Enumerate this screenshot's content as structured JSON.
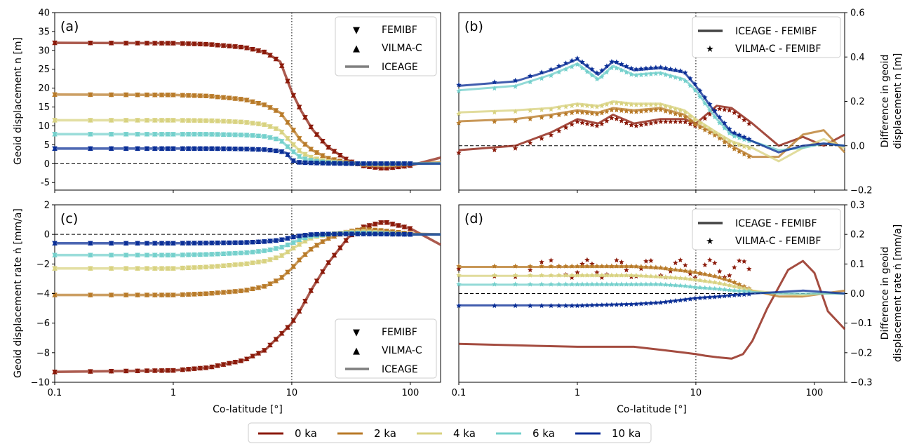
{
  "figure": {
    "xlabel": "Co-latitude [°]",
    "x_ticks": [
      "0.1",
      "1",
      "10",
      "100"
    ],
    "series_labels": [
      "0 ka",
      "2 ka",
      "4 ka",
      "6 ka",
      "10 ka"
    ],
    "series_colors": [
      "#8b1a0a",
      "#b87a28",
      "#d8d280",
      "#74d0cc",
      "#0a2e96"
    ],
    "vertical_marker_x": 10
  },
  "panels": {
    "a": {
      "label": "(a)",
      "ylabel_lines": [
        "Geoid displacement n [m]"
      ],
      "y_ticks": [
        "40",
        "35",
        "30",
        "25",
        "20",
        "15",
        "10",
        "5",
        "0",
        "-5"
      ],
      "legend": [
        "FEMIBF",
        "VILMA-C",
        "ICEAGE"
      ]
    },
    "b": {
      "label": "(b)",
      "ylabel_lines": [
        "Difference in geoid",
        "displacement n [m]"
      ],
      "y_ticks": [
        "0.6",
        "0.4",
        "0.2",
        "0.0",
        "−0.2"
      ],
      "legend": [
        "ICEAGE - FEMIBF",
        "VILMA-C - FEMIBF"
      ]
    },
    "c": {
      "label": "(c)",
      "ylabel_lines": [
        "Geoid displacement rate ṅ [mm/a]"
      ],
      "y_ticks": [
        "2",
        "0",
        "−2",
        "−4",
        "−6",
        "−8",
        "−10"
      ],
      "legend": [
        "FEMIBF",
        "VILMA-C",
        "ICEAGE"
      ]
    },
    "d": {
      "label": "(d)",
      "ylabel_lines": [
        "Difference in geoid",
        "displacement rate ṅ [mm/a]"
      ],
      "y_ticks": [
        "0.3",
        "0.2",
        "0.1",
        "0.0",
        "−0.1",
        "−0.2",
        "−0.3"
      ],
      "legend": [
        "ICEAGE - FEMIBF",
        "VILMA-C - FEMIBF"
      ]
    }
  },
  "chart_data": [
    {
      "panel": "a",
      "type": "line",
      "xscale": "log",
      "xlim": [
        0.1,
        180
      ],
      "ylim": [
        -7,
        40
      ],
      "ylabel": "Geoid displacement n [m]",
      "series": [
        {
          "name": "0 ka",
          "x": [
            0.1,
            1,
            2,
            4,
            6,
            8,
            10,
            12,
            15,
            20,
            30,
            40,
            60,
            100,
            180
          ],
          "values": [
            32.0,
            31.9,
            31.6,
            30.8,
            29.5,
            27.0,
            19.0,
            14.0,
            9.0,
            4.5,
            0.8,
            -0.6,
            -1.3,
            -0.5,
            1.6
          ]
        },
        {
          "name": "2 ka",
          "x": [
            0.1,
            1,
            2,
            4,
            6,
            8,
            10,
            12,
            15,
            20,
            30,
            40,
            60,
            100,
            180
          ],
          "values": [
            18.3,
            18.2,
            17.9,
            17.0,
            15.5,
            13.5,
            9.5,
            6.0,
            3.5,
            1.5,
            0.2,
            -0.2,
            -0.4,
            -0.1,
            0.4
          ]
        },
        {
          "name": "4 ka",
          "x": [
            0.1,
            1,
            2,
            4,
            6,
            8,
            10,
            12,
            15,
            20,
            30,
            40,
            60,
            100,
            180
          ],
          "values": [
            11.5,
            11.5,
            11.4,
            11.0,
            10.3,
            8.8,
            5.5,
            3.0,
            1.5,
            0.6,
            0.1,
            -0.1,
            -0.2,
            0.0,
            0.2
          ]
        },
        {
          "name": "6 ka",
          "x": [
            0.1,
            1,
            2,
            4,
            6,
            8,
            10,
            12,
            15,
            20,
            30,
            40,
            60,
            100,
            180
          ],
          "values": [
            7.8,
            7.8,
            7.8,
            7.6,
            7.2,
            6.3,
            3.5,
            1.5,
            0.8,
            0.3,
            0.1,
            0.0,
            0.0,
            0.0,
            0.1
          ]
        },
        {
          "name": "10 ka",
          "x": [
            0.1,
            1,
            2,
            4,
            6,
            8,
            9,
            10,
            11,
            12,
            15,
            20,
            30,
            60,
            180
          ],
          "values": [
            4.0,
            4.0,
            4.0,
            3.9,
            3.7,
            3.3,
            2.8,
            1.0,
            0.4,
            0.3,
            0.2,
            0.1,
            0.0,
            0.0,
            0.0
          ]
        }
      ]
    },
    {
      "panel": "b",
      "type": "line",
      "xscale": "log",
      "xlim": [
        0.1,
        180
      ],
      "ylim": [
        -0.2,
        0.6
      ],
      "ylabel": "Difference in geoid displacement n [m]",
      "series": [
        {
          "name": "0 ka",
          "x": [
            0.1,
            0.3,
            0.6,
            1,
            1.5,
            2,
            3,
            5,
            8,
            10,
            15,
            20,
            30,
            50,
            80,
            120,
            180
          ],
          "values": [
            -0.02,
            0.0,
            0.06,
            0.12,
            0.1,
            0.14,
            0.1,
            0.12,
            0.12,
            0.1,
            0.18,
            0.17,
            0.1,
            0.0,
            0.04,
            0.0,
            0.05
          ]
        },
        {
          "name": "2 ka",
          "x": [
            0.1,
            0.3,
            0.6,
            1,
            1.5,
            2,
            3,
            5,
            8,
            10,
            15,
            20,
            30,
            50,
            80,
            120,
            180
          ],
          "values": [
            0.11,
            0.12,
            0.14,
            0.16,
            0.15,
            0.17,
            0.16,
            0.17,
            0.14,
            0.1,
            0.05,
            0.0,
            -0.05,
            -0.05,
            0.05,
            0.07,
            -0.03
          ]
        },
        {
          "name": "4 ka",
          "x": [
            0.1,
            0.3,
            0.6,
            1,
            1.5,
            2,
            3,
            5,
            8,
            10,
            15,
            20,
            30,
            50,
            80,
            120,
            180
          ],
          "values": [
            0.15,
            0.16,
            0.17,
            0.19,
            0.18,
            0.2,
            0.19,
            0.19,
            0.16,
            0.12,
            0.06,
            0.02,
            -0.01,
            -0.07,
            -0.01,
            0.03,
            -0.01
          ]
        },
        {
          "name": "6 ka",
          "x": [
            0.1,
            0.3,
            0.6,
            1,
            1.5,
            2,
            3,
            5,
            8,
            10,
            15,
            20,
            30,
            50,
            80,
            120,
            180
          ],
          "values": [
            0.25,
            0.27,
            0.32,
            0.37,
            0.3,
            0.36,
            0.32,
            0.33,
            0.3,
            0.25,
            0.12,
            0.05,
            0.02,
            -0.02,
            -0.01,
            0.01,
            0.0
          ]
        },
        {
          "name": "10 ka",
          "x": [
            0.1,
            0.3,
            0.6,
            1,
            1.5,
            2,
            3,
            5,
            8,
            10,
            15,
            20,
            30,
            50,
            80,
            120,
            180
          ],
          "values": [
            0.27,
            0.29,
            0.34,
            0.39,
            0.32,
            0.38,
            0.34,
            0.35,
            0.33,
            0.27,
            0.14,
            0.06,
            0.02,
            -0.03,
            0.0,
            0.01,
            0.0
          ]
        }
      ]
    },
    {
      "panel": "c",
      "type": "line",
      "xscale": "log",
      "xlim": [
        0.1,
        180
      ],
      "ylim": [
        -10,
        2
      ],
      "ylabel": "Geoid displacement rate ṅ [mm/a]",
      "series": [
        {
          "name": "0 ka",
          "x": [
            0.1,
            1,
            2,
            4,
            6,
            8,
            10,
            12,
            15,
            20,
            30,
            40,
            60,
            100,
            180
          ],
          "values": [
            -9.3,
            -9.2,
            -9.0,
            -8.5,
            -7.8,
            -6.8,
            -6.0,
            -5.0,
            -3.6,
            -2.0,
            -0.2,
            0.5,
            0.85,
            0.4,
            -0.7
          ]
        },
        {
          "name": "2 ka",
          "x": [
            0.1,
            1,
            2,
            4,
            6,
            8,
            10,
            12,
            15,
            20,
            30,
            40,
            60,
            100,
            180
          ],
          "values": [
            -4.1,
            -4.1,
            -4.0,
            -3.8,
            -3.5,
            -3.0,
            -2.3,
            -1.6,
            -0.9,
            -0.3,
            0.2,
            0.35,
            0.25,
            0.05,
            0.0
          ]
        },
        {
          "name": "4 ka",
          "x": [
            0.1,
            1,
            2,
            4,
            6,
            8,
            10,
            12,
            15,
            20,
            30,
            40,
            60,
            100,
            180
          ],
          "values": [
            -2.3,
            -2.3,
            -2.2,
            -2.0,
            -1.8,
            -1.5,
            -1.0,
            -0.6,
            -0.2,
            0.0,
            0.15,
            0.2,
            0.1,
            0.0,
            0.0
          ]
        },
        {
          "name": "6 ka",
          "x": [
            0.1,
            1,
            2,
            4,
            6,
            8,
            10,
            12,
            15,
            20,
            30,
            40,
            60,
            100,
            180
          ],
          "values": [
            -1.4,
            -1.4,
            -1.35,
            -1.25,
            -1.1,
            -0.9,
            -0.6,
            -0.3,
            -0.1,
            0.0,
            0.08,
            0.1,
            0.05,
            0.0,
            0.0
          ]
        },
        {
          "name": "10 ka",
          "x": [
            0.1,
            1,
            2,
            4,
            6,
            8,
            10,
            12,
            15,
            20,
            30,
            40,
            60,
            100,
            180
          ],
          "values": [
            -0.6,
            -0.6,
            -0.58,
            -0.55,
            -0.48,
            -0.38,
            -0.2,
            -0.08,
            0.0,
            0.02,
            0.03,
            0.03,
            0.02,
            0.0,
            0.0
          ]
        }
      ]
    },
    {
      "panel": "d",
      "type": "line",
      "xscale": "log",
      "xlim": [
        0.1,
        180
      ],
      "ylim": [
        -0.3,
        0.3
      ],
      "ylabel": "Difference in geoid displacement rate ṅ [mm/a]",
      "series": [
        {
          "name": "0 ka",
          "x": [
            0.1,
            0.3,
            1,
            3,
            5,
            8,
            10,
            12,
            15,
            20,
            25,
            30,
            40,
            60,
            80,
            100,
            130,
            180
          ],
          "values": [
            -0.17,
            -0.175,
            -0.18,
            -0.18,
            -0.19,
            -0.2,
            -0.205,
            -0.21,
            -0.215,
            -0.22,
            -0.205,
            -0.16,
            -0.05,
            0.08,
            0.11,
            0.07,
            -0.06,
            -0.12
          ]
        },
        {
          "name": "2 ka",
          "x": [
            0.1,
            0.3,
            1,
            3,
            5,
            8,
            10,
            15,
            20,
            30,
            50,
            80,
            120,
            180
          ],
          "values": [
            0.09,
            0.09,
            0.09,
            0.09,
            0.085,
            0.075,
            0.07,
            0.055,
            0.04,
            0.01,
            -0.01,
            -0.01,
            0.0,
            0.01
          ]
        },
        {
          "name": "4 ka",
          "x": [
            0.1,
            0.3,
            1,
            3,
            5,
            8,
            10,
            15,
            20,
            30,
            50,
            80,
            120,
            180
          ],
          "values": [
            0.06,
            0.06,
            0.06,
            0.06,
            0.055,
            0.05,
            0.045,
            0.035,
            0.025,
            0.01,
            0.0,
            -0.005,
            0.0,
            0.0
          ]
        },
        {
          "name": "6 ka",
          "x": [
            0.1,
            0.3,
            1,
            3,
            5,
            8,
            10,
            15,
            20,
            30,
            50,
            80,
            120,
            180
          ],
          "values": [
            0.03,
            0.03,
            0.03,
            0.03,
            0.03,
            0.025,
            0.02,
            0.015,
            0.01,
            0.005,
            0.0,
            0.0,
            0.0,
            0.0
          ]
        },
        {
          "name": "10 ka",
          "x": [
            0.1,
            0.3,
            1,
            3,
            5,
            8,
            10,
            15,
            20,
            30,
            50,
            80,
            120,
            180
          ],
          "values": [
            -0.04,
            -0.04,
            -0.04,
            -0.035,
            -0.03,
            -0.02,
            -0.015,
            -0.01,
            -0.005,
            0.0,
            0.005,
            0.01,
            0.005,
            0.0
          ]
        }
      ]
    }
  ]
}
